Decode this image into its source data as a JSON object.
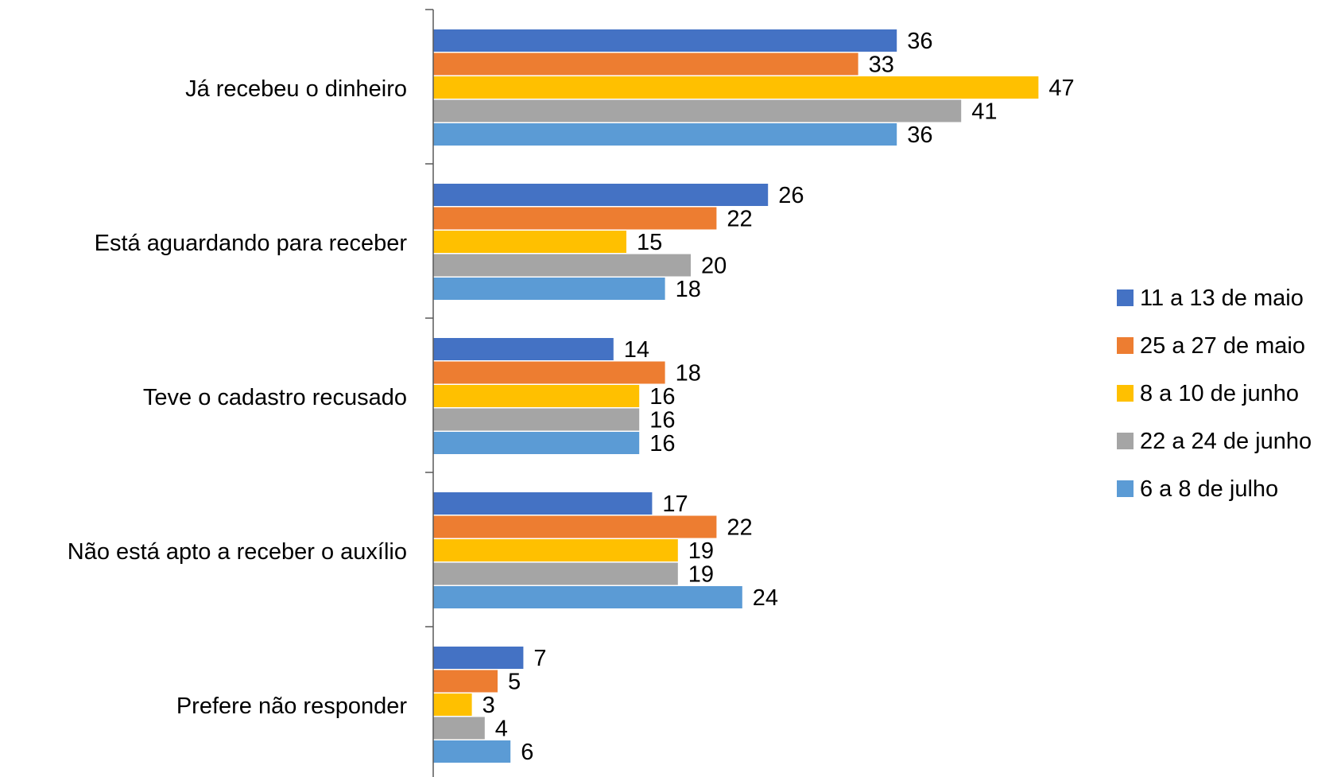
{
  "chart_data": {
    "type": "bar",
    "orientation": "horizontal",
    "title": "",
    "xlabel": "",
    "ylabel": "",
    "categories": [
      "Já recebeu o dinheiro",
      "Está aguardando para receber",
      "Teve o cadastro recusado",
      "Não está apto a receber o auxílio",
      "Prefere não responder"
    ],
    "series": [
      {
        "name": "11 a 13 de maio",
        "color": "#4472C4",
        "values": [
          36,
          26,
          14,
          17,
          7
        ]
      },
      {
        "name": "25 a 27 de maio",
        "color": "#ED7D31",
        "values": [
          33,
          22,
          18,
          22,
          5
        ]
      },
      {
        "name": "8 a 10 de junho",
        "color": "#FFC000",
        "values": [
          47,
          15,
          16,
          19,
          3
        ]
      },
      {
        "name": "22 a 24 de junho",
        "color": "#A5A5A5",
        "values": [
          41,
          20,
          16,
          19,
          4
        ]
      },
      {
        "name": "6 a 8 de julho",
        "color": "#5B9BD5",
        "values": [
          36,
          18,
          16,
          24,
          6
        ]
      }
    ],
    "xlim": [
      0,
      50
    ],
    "grid": false,
    "data_labels": true,
    "legend_position": "right"
  }
}
